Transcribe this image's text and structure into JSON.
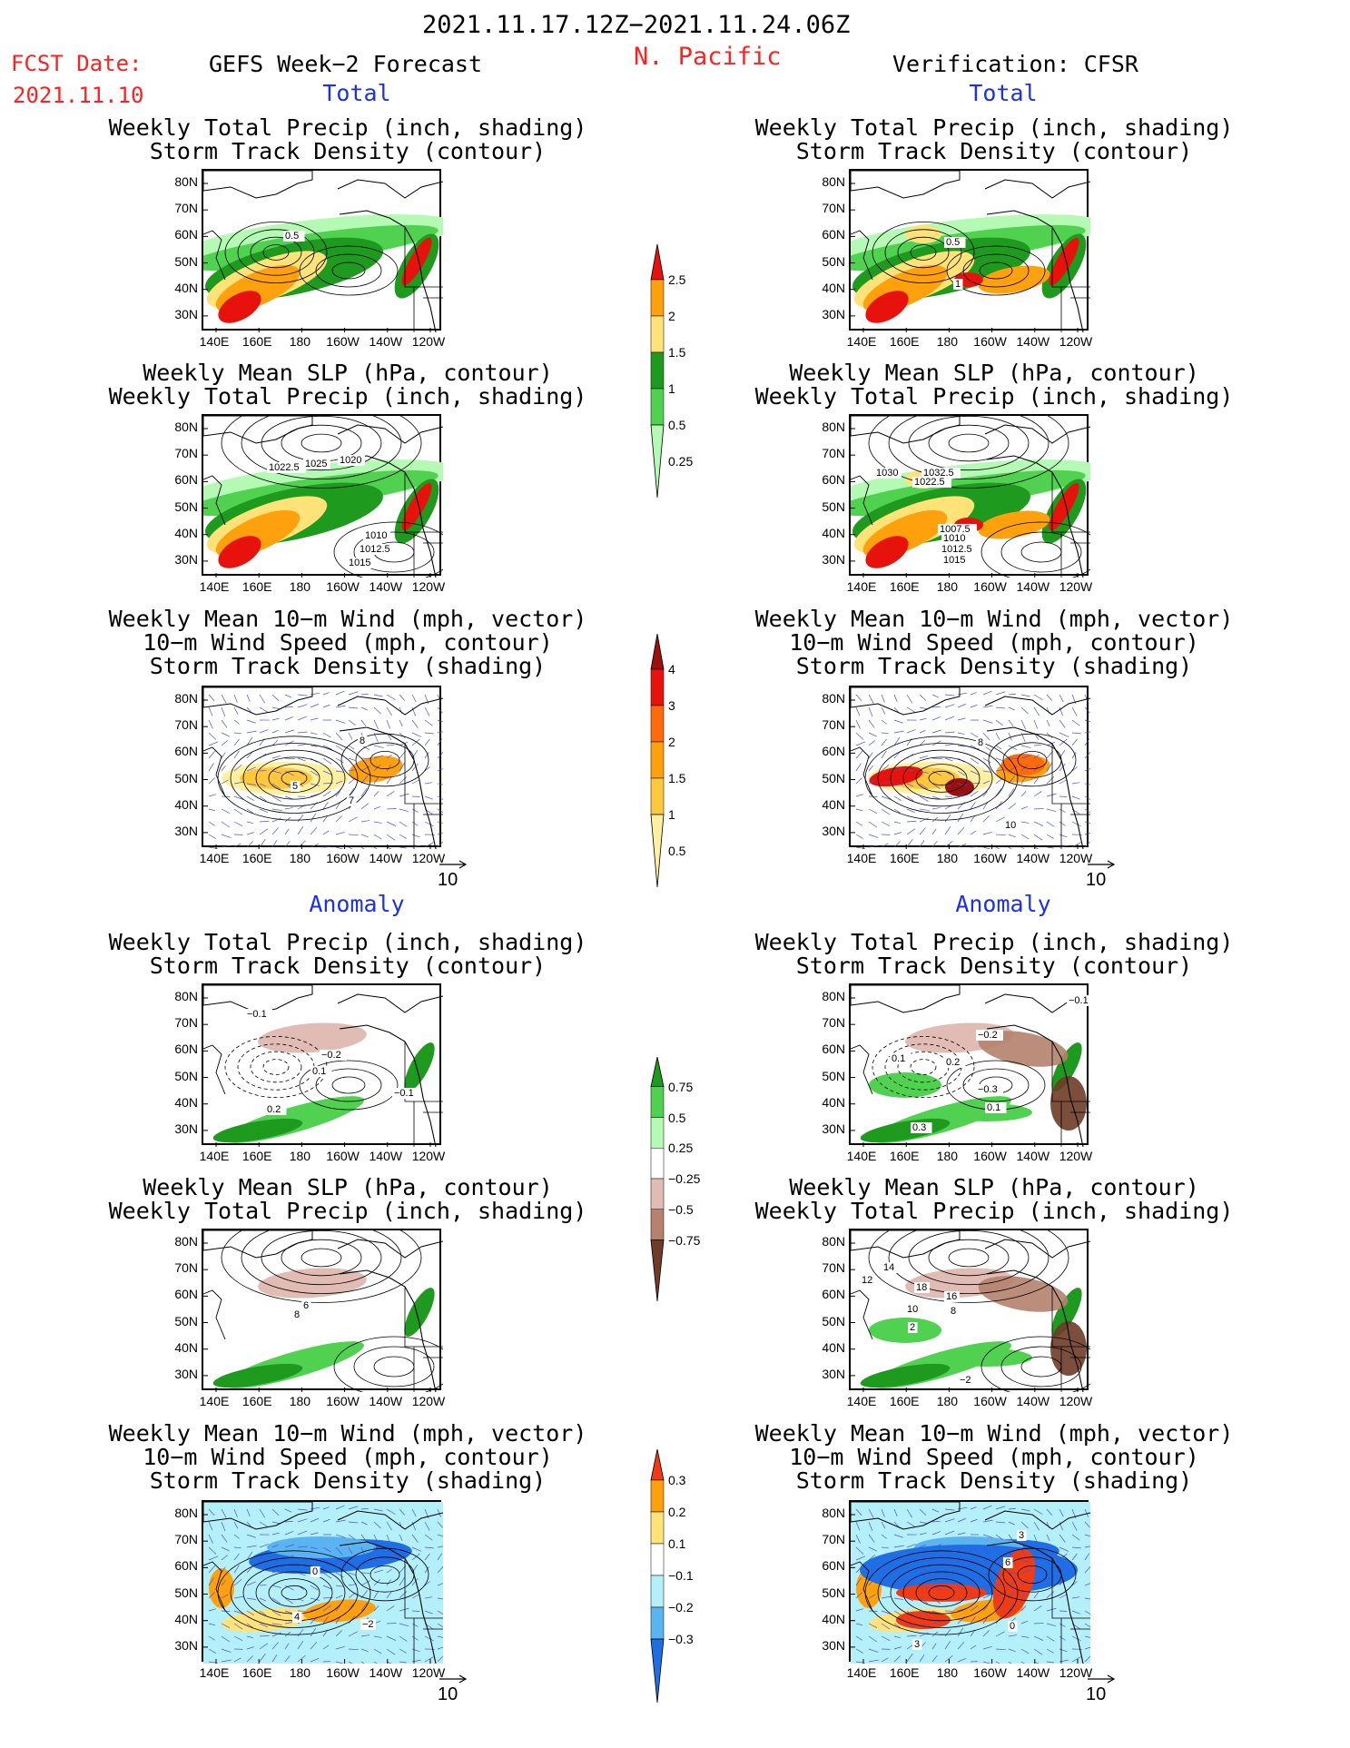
{
  "header": {
    "date_range": "2021.11.17.12Z−2021.11.24.06Z",
    "region": "N. Pacific",
    "fcst_label": "FCST Date:",
    "fcst_date": "2021.11.10",
    "left_title": "GEFS Week−2 Forecast",
    "right_title": "Verification: CFSR"
  },
  "sections": {
    "total": "Total",
    "anomaly": "Anomaly"
  },
  "panel_titles": {
    "precip": [
      "Weekly Total Precip (inch, shading)",
      "Storm Track Density (contour)"
    ],
    "slp": [
      "Weekly Mean SLP (hPa, contour)",
      "Weekly Total Precip (inch, shading)"
    ],
    "wind": [
      "Weekly Mean 10−m Wind (mph, vector)",
      "10−m Wind Speed (mph, contour)",
      "Storm Track Density (shading)"
    ]
  },
  "axes": {
    "lat_ticks": [
      "80N",
      "70N",
      "60N",
      "50N",
      "40N",
      "30N"
    ],
    "lon_ticks": [
      "140E",
      "160E",
      "180",
      "160W",
      "140W",
      "120W"
    ]
  },
  "vector_ref": "10",
  "colorbars": {
    "total_precip": {
      "labels": [
        "2.5",
        "2",
        "1.5",
        "1",
        "0.5",
        "0.25"
      ],
      "colors": [
        "#e8120c",
        "#ffa10c",
        "#ffe278",
        "#1e9a1e",
        "#50d250",
        "#b4fab4"
      ]
    },
    "total_storm": {
      "labels": [
        "4",
        "3",
        "2",
        "1.5",
        "1",
        "0.5"
      ],
      "colors": [
        "#9b0f0f",
        "#e8120c",
        "#ff6a0a",
        "#ffa10c",
        "#ffc83c",
        "#fff0a0"
      ]
    },
    "anom_precip": {
      "labels": [
        "0.75",
        "0.5",
        "0.25",
        "−0.25",
        "−0.5",
        "−0.75"
      ],
      "colors": [
        "#1e9a1e",
        "#50d250",
        "#b4fab4",
        "#ffffff",
        "#e1bcb4",
        "#b4826e",
        "#6e3c28"
      ]
    },
    "anom_storm": {
      "labels": [
        "0.3",
        "0.2",
        "0.1",
        "−0.1",
        "−0.2",
        "−0.3"
      ],
      "colors": [
        "#f03c14",
        "#ffa10c",
        "#ffe278",
        "#ffffff",
        "#b4f0fa",
        "#5ab4f0",
        "#1e6ee6"
      ]
    }
  },
  "map_labels": {
    "fp_tot": [
      "0.5"
    ],
    "fs_tot": [
      "1022.5",
      "1025",
      "1020",
      "1010",
      "1012.5",
      "1015"
    ],
    "fw_tot": [
      "8",
      "5",
      "7"
    ],
    "vp_tot": [
      "0.5",
      "1"
    ],
    "vs_tot": [
      "1030",
      "1032.5",
      "1022.5",
      "1007.5",
      "1010",
      "1012.5",
      "1015"
    ],
    "vw_tot": [
      "8",
      "10"
    ],
    "fp_anom": [
      "−0.1",
      "−0.2",
      "0.1",
      "−0.1",
      "0.2"
    ],
    "fs_anom": [
      "6",
      "8"
    ],
    "fw_anom": [
      "0",
      "4",
      "−2"
    ],
    "vp_anom": [
      "−0.1",
      "−0.2",
      "0.1",
      "0.2",
      "−0.3",
      "0.1",
      "0.3"
    ],
    "vs_anom": [
      "14",
      "12",
      "18",
      "16",
      "10",
      "8",
      "2",
      "−2"
    ],
    "vw_anom": [
      "3",
      "6",
      "0",
      "3"
    ]
  }
}
